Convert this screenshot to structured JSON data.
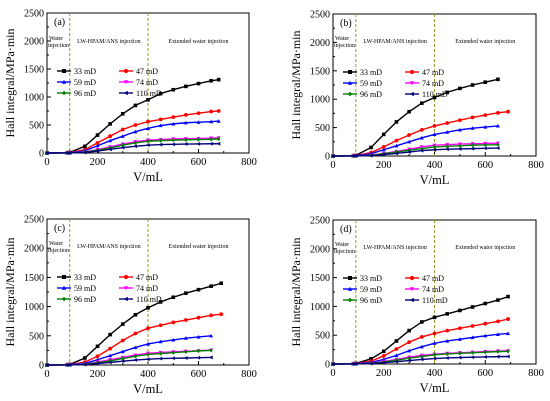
{
  "colors": {
    "phase_line": "#9a9a2a",
    "series": [
      "#000000",
      "#ff0000",
      "#0000ff",
      "#ff00ff",
      "#008000",
      "#00007a"
    ]
  },
  "chart_data": [
    {
      "type": "line",
      "panel_label": "(a)",
      "xlabel": "V/mL",
      "ylabel": "Hall integral/MPa·min",
      "xlim": [
        0,
        800
      ],
      "ylim": [
        0,
        2500
      ],
      "xticks": [
        "0",
        "200",
        "400",
        "600",
        "800"
      ],
      "yticks": [
        "0",
        "500",
        "1000",
        "1500",
        "2000",
        "2500"
      ],
      "phase_lines": [
        90,
        400
      ],
      "phases": [
        "Water injection",
        "LW-HPAM/ANS injection",
        "Extended water injection"
      ],
      "legend_location": "upper-left",
      "series": [
        {
          "name": "33 mD",
          "marker": "square",
          "x": [
            0,
            80,
            90,
            150,
            200,
            250,
            300,
            350,
            400,
            450,
            500,
            550,
            600,
            650,
            680
          ],
          "y": [
            0,
            5,
            10,
            120,
            320,
            520,
            700,
            850,
            950,
            1060,
            1130,
            1190,
            1240,
            1290,
            1310
          ]
        },
        {
          "name": "47 mD",
          "marker": "circle",
          "x": [
            0,
            80,
            90,
            150,
            200,
            250,
            300,
            350,
            400,
            450,
            500,
            550,
            600,
            650,
            680
          ],
          "y": [
            0,
            5,
            8,
            60,
            180,
            300,
            420,
            500,
            560,
            600,
            640,
            680,
            710,
            740,
            750
          ]
        },
        {
          "name": "59 mD",
          "marker": "triangle-up",
          "x": [
            0,
            80,
            90,
            150,
            200,
            250,
            300,
            350,
            400,
            450,
            500,
            550,
            600,
            650,
            680
          ],
          "y": [
            0,
            3,
            6,
            40,
            130,
            220,
            300,
            380,
            440,
            490,
            520,
            540,
            550,
            560,
            570
          ]
        },
        {
          "name": "74 mD",
          "marker": "triangle-down",
          "x": [
            0,
            80,
            90,
            150,
            200,
            250,
            300,
            350,
            400,
            450,
            500,
            550,
            600,
            650,
            680
          ],
          "y": [
            0,
            2,
            4,
            20,
            60,
            110,
            160,
            200,
            230,
            240,
            250,
            255,
            260,
            265,
            270
          ]
        },
        {
          "name": "96 mD",
          "marker": "diamond",
          "x": [
            0,
            80,
            90,
            150,
            200,
            250,
            300,
            350,
            400,
            450,
            500,
            550,
            600,
            650,
            680
          ],
          "y": [
            0,
            2,
            3,
            15,
            50,
            90,
            140,
            180,
            210,
            220,
            230,
            235,
            240,
            245,
            250
          ]
        },
        {
          "name": "110 mD",
          "marker": "triangle-left",
          "x": [
            0,
            80,
            90,
            150,
            200,
            250,
            300,
            350,
            400,
            450,
            500,
            550,
            600,
            650,
            680
          ],
          "y": [
            0,
            1,
            2,
            10,
            35,
            65,
            95,
            120,
            140,
            150,
            155,
            160,
            162,
            165,
            165
          ]
        }
      ]
    },
    {
      "type": "line",
      "panel_label": "(b)",
      "xlabel": "V/mL",
      "ylabel": "Hall integral/MPa·min",
      "xlim": [
        0,
        800
      ],
      "ylim": [
        0,
        2500
      ],
      "xticks": [
        "0",
        "200",
        "400",
        "600",
        "800"
      ],
      "yticks": [
        "0",
        "500",
        "1000",
        "1500",
        "2000",
        "2500"
      ],
      "phase_lines": [
        90,
        400
      ],
      "phases": [
        "Water injection",
        "LW-HPAM/ANS injection",
        "Extended water injection"
      ],
      "legend_location": "upper-left",
      "series": [
        {
          "name": "33 mD",
          "marker": "square",
          "x": [
            0,
            80,
            90,
            150,
            200,
            250,
            300,
            350,
            400,
            450,
            500,
            550,
            600,
            650
          ],
          "y": [
            0,
            5,
            10,
            150,
            380,
            600,
            780,
            930,
            1030,
            1120,
            1190,
            1250,
            1300,
            1350
          ]
        },
        {
          "name": "47 mD",
          "marker": "circle",
          "x": [
            0,
            80,
            90,
            150,
            200,
            250,
            300,
            350,
            400,
            450,
            500,
            550,
            600,
            650,
            690
          ],
          "y": [
            0,
            5,
            8,
            60,
            160,
            270,
            370,
            460,
            530,
            580,
            630,
            680,
            720,
            760,
            780
          ]
        },
        {
          "name": "59 mD",
          "marker": "triangle-up",
          "x": [
            0,
            80,
            90,
            150,
            200,
            250,
            300,
            350,
            400,
            450,
            500,
            550,
            600,
            650
          ],
          "y": [
            0,
            3,
            6,
            40,
            110,
            180,
            250,
            320,
            380,
            420,
            460,
            490,
            510,
            530
          ]
        },
        {
          "name": "74 mD",
          "marker": "triangle-down",
          "x": [
            0,
            80,
            90,
            150,
            200,
            250,
            300,
            350,
            400,
            450,
            500,
            550,
            600,
            650
          ],
          "y": [
            0,
            2,
            4,
            15,
            45,
            80,
            120,
            160,
            190,
            200,
            210,
            215,
            220,
            225
          ]
        },
        {
          "name": "96 mD",
          "marker": "diamond",
          "x": [
            0,
            80,
            90,
            150,
            200,
            250,
            300,
            350,
            400,
            450,
            500,
            550,
            600,
            650
          ],
          "y": [
            0,
            2,
            3,
            12,
            40,
            70,
            100,
            130,
            160,
            170,
            180,
            190,
            195,
            200
          ]
        },
        {
          "name": "110 mD",
          "marker": "triangle-left",
          "x": [
            0,
            80,
            90,
            150,
            200,
            250,
            300,
            350,
            400,
            450,
            500,
            550,
            600,
            650
          ],
          "y": [
            0,
            1,
            2,
            8,
            25,
            45,
            70,
            95,
            110,
            120,
            125,
            130,
            135,
            140
          ]
        }
      ]
    },
    {
      "type": "line",
      "panel_label": "(c)",
      "xlabel": "V/mL",
      "ylabel": "Hall integral/MPa·min",
      "xlim": [
        0,
        800
      ],
      "ylim": [
        0,
        2500
      ],
      "xticks": [
        "0",
        "200",
        "400",
        "600",
        "800"
      ],
      "yticks": [
        "0",
        "500",
        "1000",
        "1500",
        "2000",
        "2500"
      ],
      "phase_lines": [
        90,
        400
      ],
      "phases": [
        "Water injection",
        "LW-HPAM/ANS injection",
        "Extended water injection"
      ],
      "legend_location": "upper-left",
      "series": [
        {
          "name": "33 mD",
          "marker": "square",
          "x": [
            0,
            80,
            90,
            150,
            200,
            250,
            300,
            350,
            400,
            450,
            500,
            550,
            600,
            650,
            690
          ],
          "y": [
            0,
            5,
            10,
            120,
            320,
            520,
            700,
            860,
            980,
            1080,
            1160,
            1230,
            1290,
            1350,
            1400
          ]
        },
        {
          "name": "47 mD",
          "marker": "circle",
          "x": [
            0,
            80,
            90,
            150,
            200,
            250,
            300,
            350,
            400,
            450,
            500,
            550,
            600,
            650,
            690
          ],
          "y": [
            0,
            5,
            8,
            50,
            150,
            280,
            420,
            540,
            630,
            680,
            730,
            770,
            810,
            850,
            870
          ]
        },
        {
          "name": "59 mD",
          "marker": "triangle-up",
          "x": [
            0,
            80,
            90,
            150,
            200,
            250,
            300,
            350,
            400,
            450,
            500,
            550,
            600,
            650
          ],
          "y": [
            0,
            3,
            6,
            30,
            90,
            160,
            230,
            300,
            360,
            400,
            430,
            460,
            480,
            500
          ]
        },
        {
          "name": "74 mD",
          "marker": "triangle-down",
          "x": [
            0,
            80,
            90,
            150,
            200,
            250,
            300,
            350,
            400,
            450,
            500,
            550,
            600,
            650
          ],
          "y": [
            0,
            2,
            4,
            15,
            50,
            90,
            130,
            170,
            200,
            215,
            225,
            235,
            245,
            255
          ]
        },
        {
          "name": "96 mD",
          "marker": "diamond",
          "x": [
            0,
            80,
            90,
            150,
            200,
            250,
            300,
            350,
            400,
            450,
            500,
            550,
            600,
            650
          ],
          "y": [
            0,
            2,
            3,
            12,
            40,
            70,
            110,
            150,
            180,
            195,
            210,
            225,
            240,
            250
          ]
        },
        {
          "name": "110 mD",
          "marker": "triangle-left",
          "x": [
            0,
            80,
            90,
            150,
            200,
            250,
            300,
            350,
            400,
            450,
            500,
            550,
            600,
            650
          ],
          "y": [
            0,
            1,
            2,
            8,
            25,
            45,
            65,
            85,
            100,
            110,
            115,
            120,
            125,
            130
          ]
        }
      ]
    },
    {
      "type": "line",
      "panel_label": "(d)",
      "xlabel": "V/mL",
      "ylabel": "Hall integral/MPa·min",
      "xlim": [
        0,
        800
      ],
      "ylim": [
        0,
        2500
      ],
      "xticks": [
        "0",
        "200",
        "400",
        "600",
        "800"
      ],
      "yticks": [
        "0",
        "500",
        "1000",
        "1500",
        "2000",
        "2500"
      ],
      "phase_lines": [
        90,
        400
      ],
      "phases": [
        "Water injection",
        "LW-HPAM/ANS injection",
        "Extended water injection"
      ],
      "legend_location": "upper-left",
      "series": [
        {
          "name": "33 mD",
          "marker": "square",
          "x": [
            0,
            80,
            90,
            150,
            200,
            250,
            300,
            350,
            400,
            450,
            500,
            550,
            600,
            650,
            690
          ],
          "y": [
            0,
            5,
            10,
            90,
            220,
            400,
            580,
            730,
            810,
            870,
            930,
            990,
            1050,
            1110,
            1170
          ]
        },
        {
          "name": "47 mD",
          "marker": "circle",
          "x": [
            0,
            80,
            90,
            150,
            200,
            250,
            300,
            350,
            400,
            450,
            500,
            550,
            600,
            650,
            690
          ],
          "y": [
            0,
            5,
            8,
            50,
            140,
            260,
            380,
            470,
            530,
            580,
            620,
            660,
            700,
            740,
            780
          ]
        },
        {
          "name": "59 mD",
          "marker": "triangle-up",
          "x": [
            0,
            80,
            90,
            150,
            200,
            250,
            300,
            350,
            400,
            450,
            500,
            550,
            600,
            650,
            690
          ],
          "y": [
            0,
            3,
            6,
            30,
            80,
            150,
            230,
            300,
            360,
            400,
            430,
            460,
            490,
            515,
            530
          ]
        },
        {
          "name": "74 mD",
          "marker": "triangle-down",
          "x": [
            0,
            80,
            90,
            150,
            200,
            250,
            300,
            350,
            400,
            450,
            500,
            550,
            600,
            650,
            690
          ],
          "y": [
            0,
            2,
            4,
            15,
            45,
            80,
            120,
            150,
            170,
            185,
            195,
            205,
            215,
            225,
            230
          ]
        },
        {
          "name": "96 mD",
          "marker": "diamond",
          "x": [
            0,
            80,
            90,
            150,
            200,
            250,
            300,
            350,
            400,
            450,
            500,
            550,
            600,
            650,
            690
          ],
          "y": [
            0,
            2,
            3,
            12,
            35,
            65,
            100,
            130,
            160,
            175,
            185,
            195,
            205,
            215,
            220
          ]
        },
        {
          "name": "110 mD",
          "marker": "triangle-left",
          "x": [
            0,
            80,
            90,
            150,
            200,
            250,
            300,
            350,
            400,
            450,
            500,
            550,
            600,
            650,
            690
          ],
          "y": [
            0,
            1,
            2,
            8,
            22,
            40,
            60,
            80,
            95,
            105,
            112,
            118,
            123,
            128,
            130
          ]
        }
      ]
    }
  ]
}
